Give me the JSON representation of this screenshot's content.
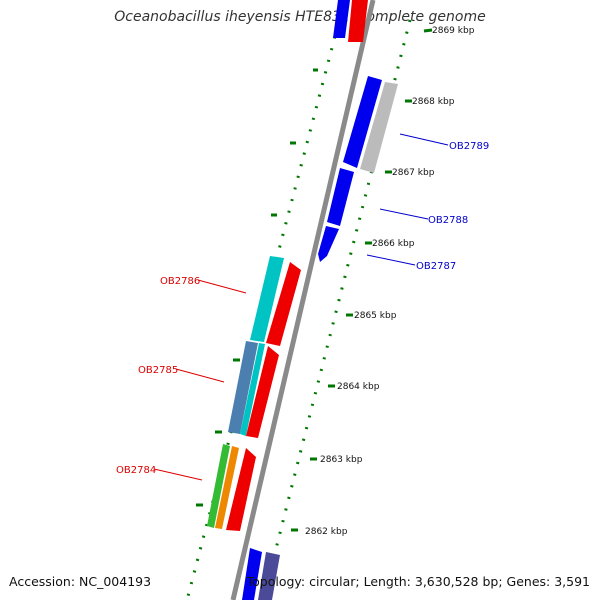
{
  "title": "Oceanobacillus iheyensis HTE831, complete genome",
  "accession_text": "Accession: NC_004193",
  "topology_text": "Topology: circular; Length: 3,630,528 bp; Genes: 3,591",
  "kbp_labels": [
    "2869 kbp",
    "2868 kbp",
    "2867 kbp",
    "2866 kbp",
    "2865 kbp",
    "2864 kbp",
    "2863 kbp",
    "2862 kbp"
  ],
  "genes_plus_strand": [
    {
      "id": "OB2789",
      "color": "#0000ee"
    },
    {
      "id": "OB2788",
      "color": "#0000ee"
    },
    {
      "id": "OB2787",
      "color": "#0000ee"
    }
  ],
  "genes_minus_strand": [
    {
      "id": "OB2786",
      "color": "#dd0000"
    },
    {
      "id": "OB2785",
      "color": "#dd0000"
    },
    {
      "id": "OB2784",
      "color": "#dd0000"
    }
  ],
  "colors": {
    "backbone": "#8a8a8a",
    "ruler": "#007700",
    "plus_label": "#0000cc",
    "minus_label": "#dd0000",
    "gene_blue": "#0000ee",
    "gene_red": "#ee0000",
    "gene_gray": "#bbbbbb",
    "gene_cyan": "#00c4c4",
    "gene_steelblue": "#4a7fb0",
    "gene_green": "#33bb33",
    "gene_orange": "#ee8800",
    "gene_navy": "#4a4a99"
  }
}
